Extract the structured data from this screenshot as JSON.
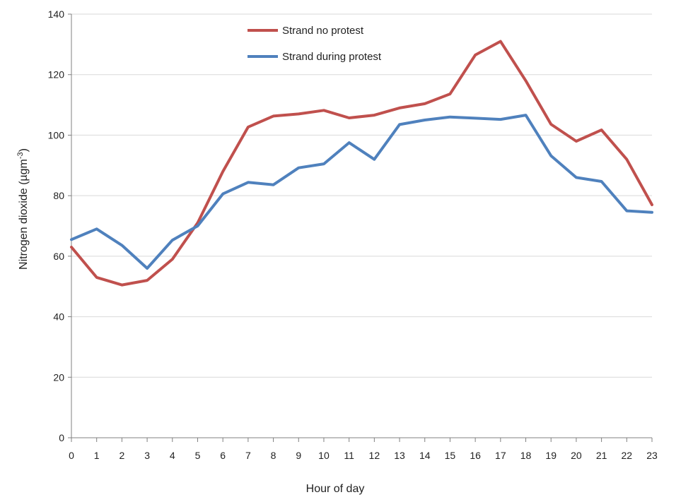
{
  "chart_data": {
    "type": "line",
    "title": "",
    "xlabel": "Hour of day",
    "ylabel_prefix": "Nitrogen dioxide (µgm",
    "ylabel_superscript": "-3",
    "ylabel_suffix": ")",
    "x": [
      0,
      1,
      2,
      3,
      4,
      5,
      6,
      7,
      8,
      9,
      10,
      11,
      12,
      13,
      14,
      15,
      16,
      17,
      18,
      19,
      20,
      21,
      22,
      23
    ],
    "xlim": [
      0,
      23
    ],
    "ylim": [
      0,
      140
    ],
    "yticks": [
      0,
      20,
      40,
      60,
      80,
      100,
      120,
      140
    ],
    "grid": true,
    "legend_position": "top-center",
    "series": [
      {
        "name": "Strand no protest",
        "color": "#c0504d",
        "values": [
          63,
          53,
          50.5,
          52,
          59,
          71,
          88,
          102.7,
          106.3,
          107,
          108.2,
          105.7,
          106.6,
          109,
          110.4,
          113.6,
          126.5,
          131,
          118,
          103.6,
          98,
          101.7,
          92,
          77
        ]
      },
      {
        "name": "Strand during protest",
        "color": "#4f81bd",
        "values": [
          65.5,
          69,
          63.6,
          56,
          65.3,
          70,
          80.6,
          84.4,
          83.6,
          89.2,
          90.5,
          97.5,
          92,
          103.5,
          105,
          106,
          105.6,
          105.2,
          106.6,
          93.2,
          86,
          84.7,
          75,
          74.5
        ]
      }
    ]
  }
}
